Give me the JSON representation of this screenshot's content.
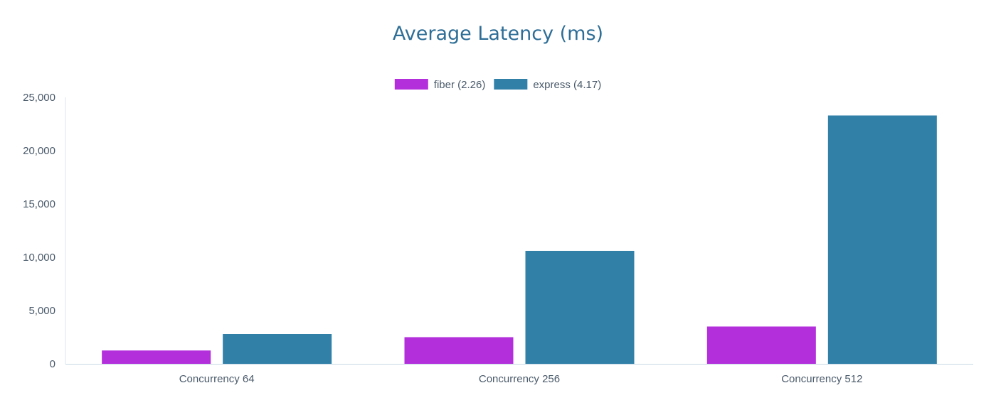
{
  "chart_data": {
    "type": "bar",
    "title": "Average Latency (ms)",
    "xlabel": "",
    "ylabel": "",
    "categories": [
      "Concurrency 64",
      "Concurrency 256",
      "Concurrency 512"
    ],
    "series": [
      {
        "name": "fiber (2.26)",
        "color": "#b32fdb",
        "values": [
          1250,
          2500,
          3500
        ]
      },
      {
        "name": "express (4.17)",
        "color": "#3180a8",
        "values": [
          2800,
          10600,
          23300
        ]
      }
    ],
    "ylim": [
      0,
      25000
    ],
    "yticks": [
      0,
      5000,
      10000,
      15000,
      20000,
      25000
    ],
    "ytick_labels": [
      "0",
      "5,000",
      "10,000",
      "15,000",
      "20,000",
      "25,000"
    ],
    "grid": false,
    "legend_position": "top-center"
  }
}
